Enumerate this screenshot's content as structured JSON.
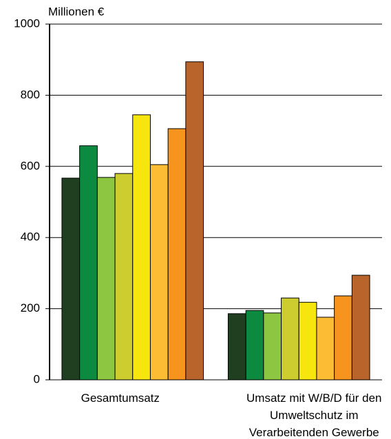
{
  "chart_data": {
    "type": "bar",
    "y_label": "Millionen €",
    "categories": [
      "Gesamtumsatz",
      "Umsatz mit W/B/D für den Umweltschutz im Verarbeitenden Gewerbe"
    ],
    "series": [
      {
        "color": "#1f3f20",
        "values": [
          567,
          186
        ]
      },
      {
        "color": "#0b8a40",
        "values": [
          658,
          195
        ]
      },
      {
        "color": "#8dc640",
        "values": [
          569,
          188
        ]
      },
      {
        "color": "#cdcd2f",
        "values": [
          580,
          230
        ]
      },
      {
        "color": "#f6e60e",
        "values": [
          745,
          218
        ]
      },
      {
        "color": "#fcbd35",
        "values": [
          605,
          176
        ]
      },
      {
        "color": "#f7941e",
        "values": [
          706,
          236
        ]
      },
      {
        "color": "#b9642a",
        "values": [
          894,
          294
        ]
      }
    ],
    "ylim": [
      0,
      1000
    ],
    "yticks": [
      0,
      200,
      400,
      600,
      800,
      1000
    ],
    "grid": true
  }
}
